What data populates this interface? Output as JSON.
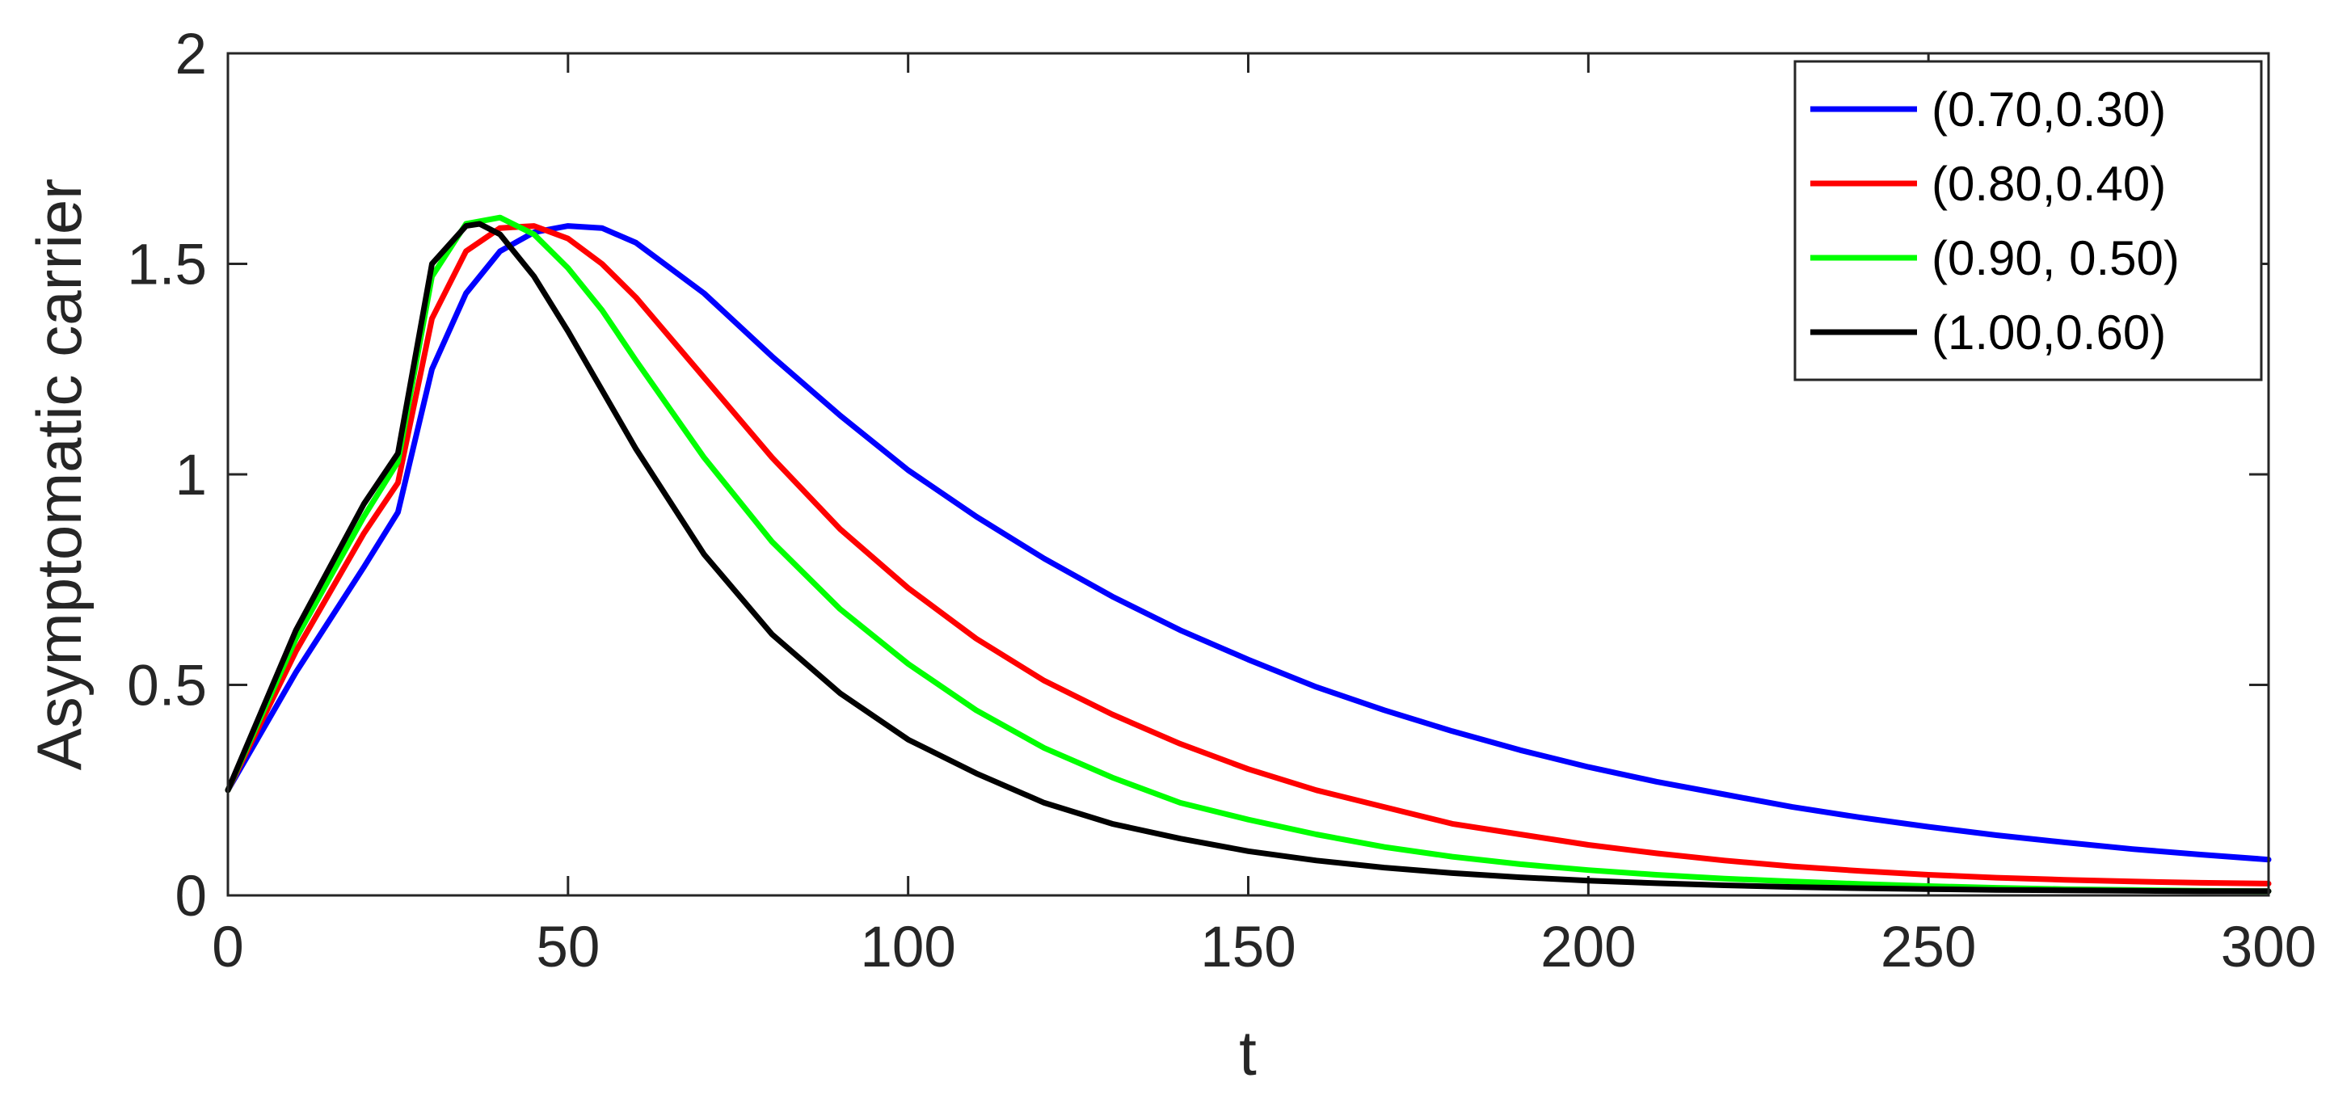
{
  "chart_data": {
    "type": "line",
    "xlabel": "t",
    "ylabel": "Asymptomatic carrier",
    "xlim": [
      0,
      300
    ],
    "ylim": [
      0,
      2
    ],
    "xticks": [
      0,
      50,
      100,
      150,
      200,
      250,
      300
    ],
    "yticks": [
      0,
      0.5,
      1,
      1.5,
      2
    ],
    "xtick_labels": [
      "0",
      "50",
      "100",
      "150",
      "200",
      "250",
      "300"
    ],
    "ytick_labels": [
      "0",
      "0.5",
      "1",
      "1.5",
      "2"
    ],
    "grid": false,
    "legend_position": "top-right",
    "series": [
      {
        "name": "(0.70,0.30)",
        "color": "#0000ff",
        "x": [
          0,
          10,
          20,
          25,
          30,
          35,
          40,
          45,
          50,
          55,
          60,
          70,
          80,
          90,
          100,
          110,
          120,
          130,
          140,
          150,
          160,
          170,
          180,
          190,
          200,
          210,
          220,
          230,
          240,
          250,
          260,
          270,
          280,
          290,
          300
        ],
        "y": [
          0.25,
          0.53,
          0.78,
          0.91,
          1.25,
          1.43,
          1.53,
          1.575,
          1.59,
          1.585,
          1.55,
          1.43,
          1.28,
          1.14,
          1.01,
          0.9,
          0.8,
          0.71,
          0.63,
          0.56,
          0.495,
          0.44,
          0.39,
          0.345,
          0.305,
          0.27,
          0.24,
          0.21,
          0.185,
          0.163,
          0.143,
          0.126,
          0.11,
          0.097,
          0.085
        ]
      },
      {
        "name": "(0.80,0.40)",
        "color": "#ff0000",
        "x": [
          0,
          10,
          20,
          25,
          30,
          35,
          40,
          45,
          50,
          55,
          60,
          70,
          80,
          90,
          100,
          110,
          120,
          130,
          140,
          150,
          160,
          170,
          180,
          190,
          200,
          210,
          220,
          230,
          240,
          250,
          260,
          270,
          280,
          290,
          300
        ],
        "y": [
          0.25,
          0.58,
          0.86,
          0.98,
          1.37,
          1.53,
          1.585,
          1.59,
          1.56,
          1.5,
          1.42,
          1.23,
          1.04,
          0.87,
          0.73,
          0.61,
          0.51,
          0.43,
          0.36,
          0.3,
          0.25,
          0.21,
          0.17,
          0.145,
          0.12,
          0.1,
          0.083,
          0.069,
          0.058,
          0.049,
          0.042,
          0.037,
          0.033,
          0.03,
          0.028
        ]
      },
      {
        "name": "(0.90, 0.50)",
        "color": "#00ff00",
        "x": [
          0,
          10,
          20,
          25,
          30,
          35,
          40,
          45,
          50,
          55,
          60,
          70,
          80,
          90,
          100,
          110,
          120,
          130,
          140,
          150,
          160,
          170,
          180,
          190,
          200,
          210,
          220,
          230,
          240,
          250,
          260,
          270,
          280,
          290,
          300
        ],
        "y": [
          0.25,
          0.61,
          0.9,
          1.03,
          1.47,
          1.595,
          1.61,
          1.57,
          1.49,
          1.39,
          1.27,
          1.04,
          0.84,
          0.68,
          0.55,
          0.44,
          0.35,
          0.28,
          0.22,
          0.18,
          0.145,
          0.115,
          0.092,
          0.074,
          0.06,
          0.049,
          0.04,
          0.033,
          0.027,
          0.022,
          0.018,
          0.015,
          0.013,
          0.011,
          0.01
        ]
      },
      {
        "name": "(1.00,0.60)",
        "color": "#000000",
        "x": [
          0,
          10,
          20,
          25,
          30,
          35,
          37,
          40,
          45,
          50,
          55,
          60,
          70,
          80,
          90,
          100,
          110,
          120,
          130,
          140,
          150,
          160,
          170,
          180,
          190,
          200,
          210,
          220,
          230,
          240,
          250,
          260,
          270,
          280,
          290,
          300
        ],
        "y": [
          0.25,
          0.63,
          0.93,
          1.05,
          1.5,
          1.59,
          1.595,
          1.57,
          1.47,
          1.34,
          1.2,
          1.06,
          0.81,
          0.62,
          0.48,
          0.37,
          0.29,
          0.22,
          0.17,
          0.135,
          0.105,
          0.083,
          0.066,
          0.053,
          0.043,
          0.035,
          0.029,
          0.024,
          0.02,
          0.017,
          0.015,
          0.013,
          0.012,
          0.011,
          0.01,
          0.01
        ]
      }
    ]
  }
}
